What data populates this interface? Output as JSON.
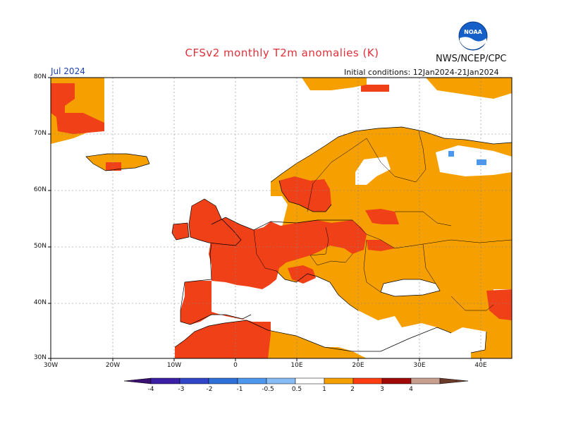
{
  "header": {
    "title": "CFSv2 monthly T2m anomalies (K)",
    "org": "NWS/NCEP/CPC",
    "month": "Jul 2024",
    "initial_conditions": "Initial conditions: 12Jan2024-21Jan2024",
    "logo_text": "NOAA"
  },
  "map": {
    "lat_labels": [
      "80N",
      "70N",
      "60N",
      "50N",
      "40N",
      "30N"
    ],
    "lon_labels": [
      "30W",
      "20W",
      "10W",
      "0",
      "10E",
      "20E",
      "30E",
      "40E"
    ]
  },
  "colorbar": {
    "labels": [
      "-4",
      "-3",
      "-2",
      "-1",
      "-0.5",
      "0.5",
      "1",
      "2",
      "3",
      "4"
    ],
    "colors": [
      "#3a1fa6",
      "#2f46c8",
      "#2f6fd8",
      "#4d97ee",
      "#86bdf6",
      "#ffffff",
      "#f5a000",
      "#ff3d10",
      "#a10808",
      "#c8a090"
    ]
  },
  "legend_colors": {
    "moderate_positive": "#f5a000",
    "strong_positive": "#f04018",
    "very_strong_positive": "#a10808",
    "negative": "#4d97ee"
  }
}
